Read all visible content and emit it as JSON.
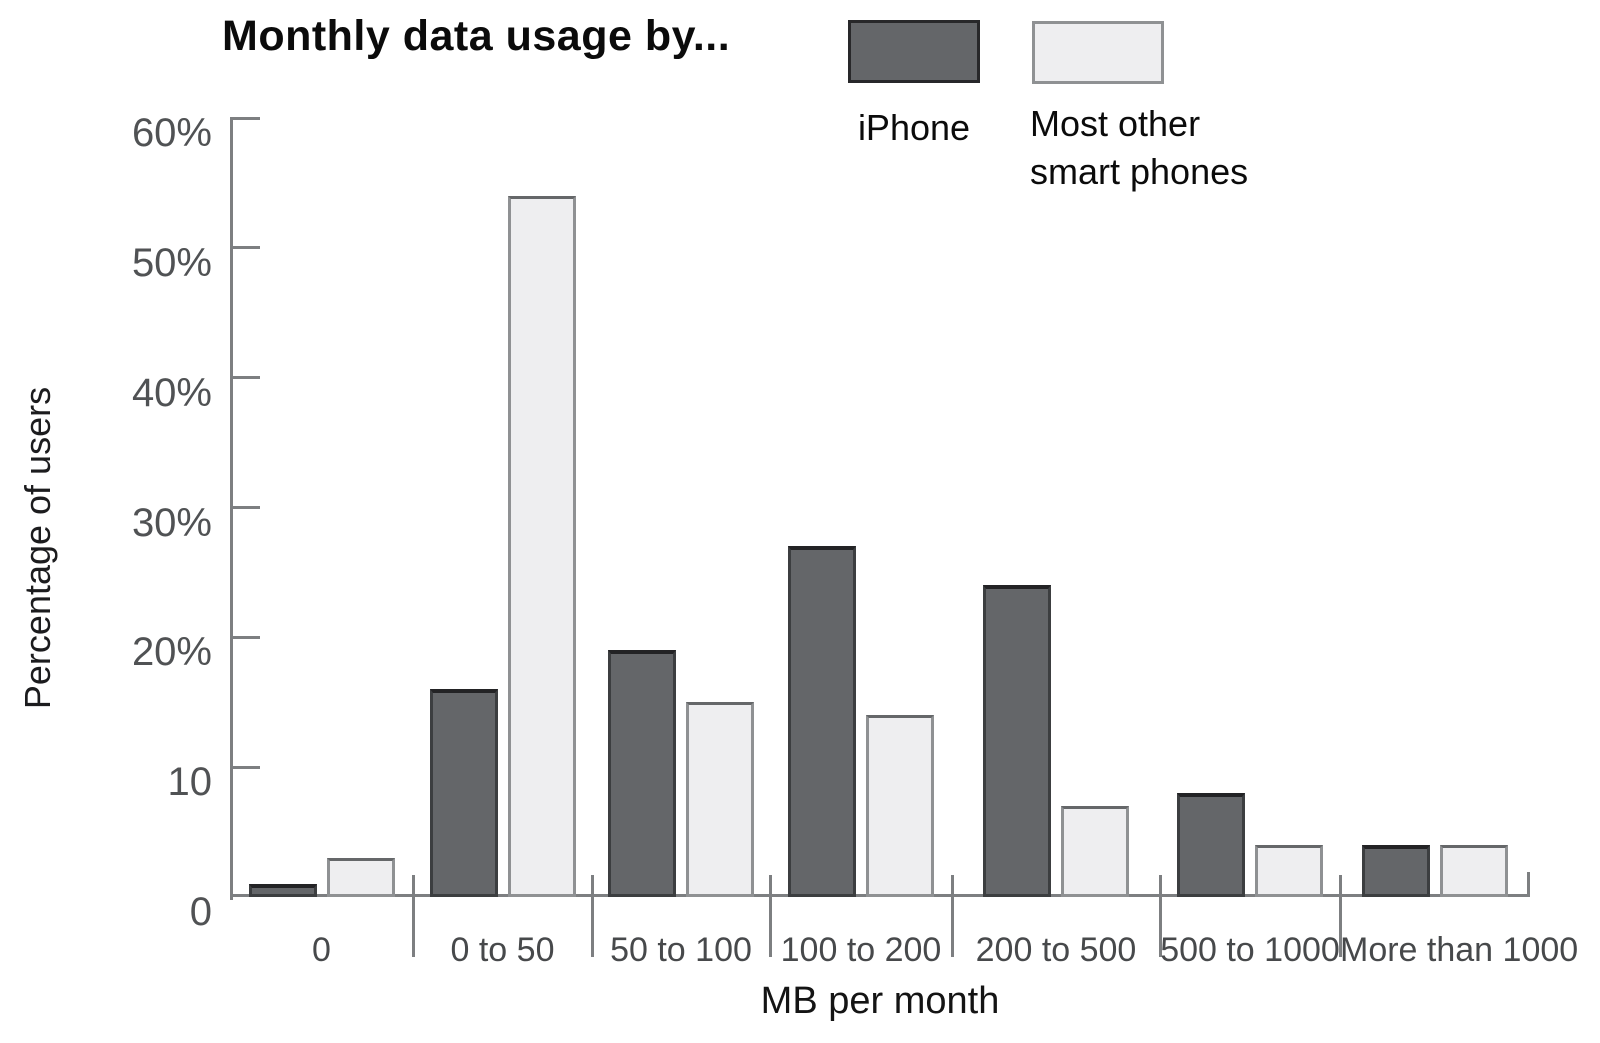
{
  "title": "Monthly data usage by...",
  "legend": {
    "iphone_label": "iPhone",
    "other_label": "Most other\nsmart phones"
  },
  "chart_data": {
    "type": "bar",
    "title": "Monthly data usage by...",
    "xlabel": "MB per month",
    "ylabel": "Percentage of users",
    "ylim": [
      0,
      60
    ],
    "y_tick_values": [
      60,
      50,
      40,
      30,
      20,
      10,
      0
    ],
    "y_tick_labels": [
      "60%",
      "50%",
      "40%",
      "30%",
      "20%",
      "10",
      "0"
    ],
    "grid": false,
    "legend_position": "top-right",
    "categories": [
      "0",
      "0 to 50",
      "50 to 100",
      "100 to 200",
      "200 to 500",
      "500 to 1000",
      "More than 1000"
    ],
    "series": [
      {
        "name": "iPhone",
        "values": [
          1,
          16,
          19,
          27,
          24,
          8,
          4
        ],
        "color": "#646669",
        "border_color": "#3c3e40",
        "top_border_color": "#232325"
      },
      {
        "name": "Most other smart phones",
        "values": [
          3,
          54,
          15,
          14,
          7,
          4,
          4
        ],
        "color": "#eeeef0",
        "border_color": "#8f9193",
        "top_border_color": "#656769"
      }
    ],
    "unit": "%"
  },
  "colors": {
    "background": "#ffffff",
    "axis": "#7d7f81",
    "tick_label": "#505254",
    "category_label": "#47494b",
    "text": "#0b0b0b"
  }
}
